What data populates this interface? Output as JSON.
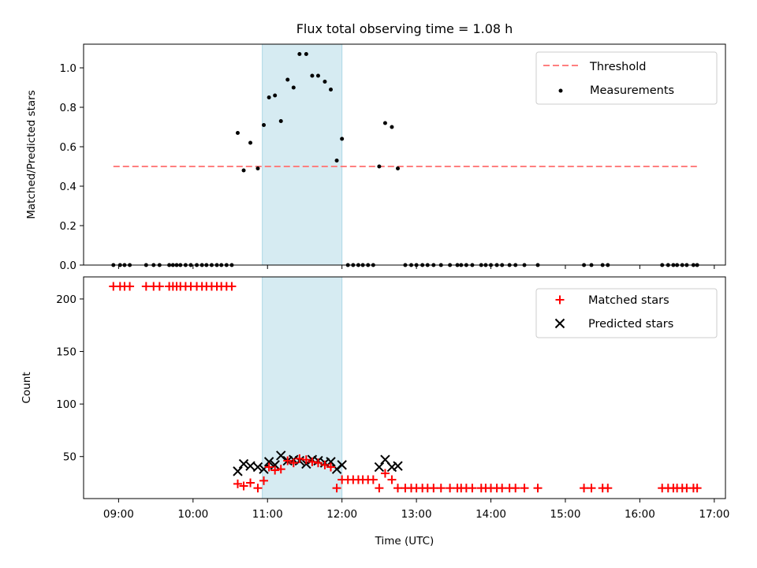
{
  "title": "Flux total observing time = 1.08 h",
  "colors": {
    "threshold": "#ff7f7f",
    "measurement": "#000000",
    "matched": "#ff0000",
    "predicted": "#000000",
    "highlight": "#add8e6"
  },
  "chart_data": [
    {
      "type": "scatter",
      "ylabel": "Matched/Predicted stars",
      "xlim": [
        8.53,
        17.15
      ],
      "ylim": [
        0,
        1.12
      ],
      "x_ticks_shown_labels": false,
      "y_ticks": [
        0.0,
        0.2,
        0.4,
        0.6,
        0.8,
        1.0
      ],
      "y_tick_labels": [
        "0.0",
        "0.2",
        "0.4",
        "0.6",
        "0.8",
        "1.0"
      ],
      "highlight_span": [
        10.93,
        12.0
      ],
      "legend": {
        "position": "top-right",
        "entries": [
          "Threshold",
          "Measurements"
        ]
      },
      "threshold": {
        "name": "Threshold",
        "x": [
          8.93,
          16.77
        ],
        "y": 0.5
      },
      "measurements": {
        "name": "Measurements",
        "x": [
          8.93,
          9.02,
          9.08,
          9.15,
          9.37,
          9.47,
          9.55,
          9.68,
          9.73,
          9.78,
          9.83,
          9.9,
          9.97,
          10.05,
          10.12,
          10.18,
          10.25,
          10.32,
          10.38,
          10.45,
          10.52,
          10.6,
          10.68,
          10.77,
          10.87,
          10.95,
          11.02,
          11.1,
          11.18,
          11.27,
          11.35,
          11.43,
          11.52,
          11.6,
          11.68,
          11.77,
          11.85,
          11.93,
          12.0,
          12.08,
          12.15,
          12.22,
          12.28,
          12.35,
          12.42,
          12.5,
          12.58,
          12.67,
          12.75,
          12.85,
          12.93,
          13.0,
          13.08,
          13.15,
          13.23,
          13.33,
          13.45,
          13.55,
          13.6,
          13.67,
          13.75,
          13.87,
          13.93,
          14.0,
          14.08,
          14.15,
          14.25,
          14.33,
          14.45,
          14.63,
          15.25,
          15.35,
          15.5,
          15.57,
          16.3,
          16.38,
          16.45,
          16.5,
          16.57,
          16.63,
          16.72,
          16.77
        ],
        "y": [
          0,
          0,
          0,
          0,
          0,
          0,
          0,
          0,
          0,
          0,
          0,
          0,
          0,
          0,
          0,
          0,
          0,
          0,
          0,
          0,
          0,
          0.67,
          0.48,
          0.62,
          0.49,
          0.71,
          0.85,
          0.86,
          0.73,
          0.94,
          0.9,
          1.07,
          1.07,
          0.96,
          0.96,
          0.93,
          0.89,
          0.53,
          0.64,
          0,
          0,
          0,
          0,
          0,
          0,
          0.5,
          0.72,
          0.7,
          0.49,
          0,
          0,
          0,
          0,
          0,
          0,
          0,
          0,
          0,
          0,
          0,
          0,
          0,
          0,
          0,
          0,
          0,
          0,
          0,
          0,
          0,
          0,
          0,
          0,
          0,
          0,
          0,
          0,
          0,
          0,
          0,
          0,
          0
        ]
      }
    },
    {
      "type": "scatter",
      "xlabel": "Time (UTC)",
      "ylabel": "Count",
      "xlim": [
        8.53,
        17.15
      ],
      "ylim": [
        10,
        221
      ],
      "x_ticks": [
        9,
        10,
        11,
        12,
        13,
        14,
        15,
        16,
        17
      ],
      "x_tick_labels": [
        "09:00",
        "10:00",
        "11:00",
        "12:00",
        "13:00",
        "14:00",
        "15:00",
        "16:00",
        "17:00"
      ],
      "y_ticks": [
        50,
        100,
        150,
        200
      ],
      "y_tick_labels": [
        "50",
        "100",
        "150",
        "200"
      ],
      "highlight_span": [
        10.93,
        12.0
      ],
      "legend": {
        "position": "top-right",
        "entries": [
          "Matched stars",
          "Predicted stars"
        ]
      },
      "series": [
        {
          "name": "Matched stars",
          "marker": "plus",
          "x": [
            8.93,
            9.02,
            9.08,
            9.15,
            9.37,
            9.47,
            9.55,
            9.68,
            9.73,
            9.78,
            9.83,
            9.9,
            9.97,
            10.05,
            10.12,
            10.18,
            10.25,
            10.32,
            10.38,
            10.45,
            10.52,
            10.6,
            10.68,
            10.77,
            10.87,
            10.95,
            11.02,
            11.1,
            11.18,
            11.27,
            11.35,
            11.43,
            11.52,
            11.6,
            11.68,
            11.77,
            11.85,
            11.93,
            12.0,
            12.08,
            12.15,
            12.22,
            12.28,
            12.35,
            12.42,
            12.5,
            12.58,
            12.67,
            12.75,
            12.85,
            12.93,
            13.0,
            13.08,
            13.15,
            13.23,
            13.33,
            13.45,
            13.55,
            13.6,
            13.67,
            13.75,
            13.87,
            13.93,
            14.0,
            14.08,
            14.15,
            14.25,
            14.33,
            14.45,
            14.63,
            15.25,
            15.35,
            15.5,
            15.57,
            16.3,
            16.38,
            16.45,
            16.5,
            16.57,
            16.63,
            16.72,
            16.77
          ],
          "y": [
            212,
            212,
            212,
            212,
            212,
            212,
            212,
            212,
            212,
            212,
            212,
            212,
            212,
            212,
            212,
            212,
            212,
            212,
            212,
            212,
            212,
            24,
            22,
            25,
            20,
            27,
            40,
            37,
            38,
            46,
            44,
            48,
            47,
            45,
            44,
            42,
            40,
            20,
            28,
            28,
            28,
            28,
            28,
            28,
            28,
            20,
            34,
            28,
            20,
            20,
            20,
            20,
            20,
            20,
            20,
            20,
            20,
            20,
            20,
            20,
            20,
            20,
            20,
            20,
            20,
            20,
            20,
            20,
            20,
            20,
            20,
            20,
            20,
            20,
            20,
            20,
            20,
            20,
            20,
            20,
            20,
            20
          ]
        },
        {
          "name": "Predicted stars",
          "marker": "x",
          "x": [
            10.6,
            10.68,
            10.77,
            10.87,
            10.95,
            11.02,
            11.1,
            11.18,
            11.27,
            11.35,
            11.43,
            11.52,
            11.6,
            11.68,
            11.77,
            11.85,
            11.93,
            12.0,
            12.5,
            12.58,
            12.67,
            12.75
          ],
          "y": [
            36,
            43,
            41,
            40,
            38,
            45,
            42,
            51,
            46,
            47,
            46,
            43,
            47,
            46,
            44,
            45,
            38,
            42,
            40,
            47,
            40,
            41
          ]
        }
      ]
    }
  ]
}
